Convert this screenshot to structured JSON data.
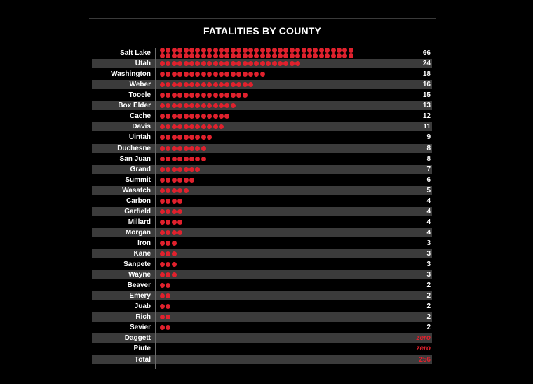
{
  "chart_data": {
    "type": "table",
    "title": "FATALITIES BY COUNTY",
    "accent_color": "#e0212d",
    "shade_color": "#3b3b3b",
    "rows": [
      {
        "county": "Salt Lake",
        "value": 66,
        "label": "66"
      },
      {
        "county": "Utah",
        "value": 24,
        "label": "24"
      },
      {
        "county": "Washington",
        "value": 18,
        "label": "18"
      },
      {
        "county": "Weber",
        "value": 16,
        "label": "16"
      },
      {
        "county": "Tooele",
        "value": 15,
        "label": "15"
      },
      {
        "county": "Box Elder",
        "value": 13,
        "label": "13"
      },
      {
        "county": "Cache",
        "value": 12,
        "label": "12"
      },
      {
        "county": "Davis",
        "value": 11,
        "label": "11"
      },
      {
        "county": "Uintah",
        "value": 9,
        "label": "9"
      },
      {
        "county": "Duchesne",
        "value": 8,
        "label": "8"
      },
      {
        "county": "San Juan",
        "value": 8,
        "label": "8"
      },
      {
        "county": "Grand",
        "value": 7,
        "label": "7"
      },
      {
        "county": "Summit",
        "value": 6,
        "label": "6"
      },
      {
        "county": "Wasatch",
        "value": 5,
        "label": "5"
      },
      {
        "county": "Carbon",
        "value": 4,
        "label": "4"
      },
      {
        "county": "Garfield",
        "value": 4,
        "label": "4"
      },
      {
        "county": "Millard",
        "value": 4,
        "label": "4"
      },
      {
        "county": "Morgan",
        "value": 4,
        "label": "4"
      },
      {
        "county": "Iron",
        "value": 3,
        "label": "3"
      },
      {
        "county": "Kane",
        "value": 3,
        "label": "3"
      },
      {
        "county": "Sanpete",
        "value": 3,
        "label": "3"
      },
      {
        "county": "Wayne",
        "value": 3,
        "label": "3"
      },
      {
        "county": "Beaver",
        "value": 2,
        "label": "2"
      },
      {
        "county": "Emery",
        "value": 2,
        "label": "2"
      },
      {
        "county": "Juab",
        "value": 2,
        "label": "2"
      },
      {
        "county": "Rich",
        "value": 2,
        "label": "2"
      },
      {
        "county": "Sevier",
        "value": 2,
        "label": "2"
      },
      {
        "county": "Daggett",
        "value": 0,
        "label": "zero"
      },
      {
        "county": "Piute",
        "value": 0,
        "label": "zero"
      }
    ],
    "total": {
      "label": "Total",
      "value": 256,
      "display": "256"
    }
  }
}
